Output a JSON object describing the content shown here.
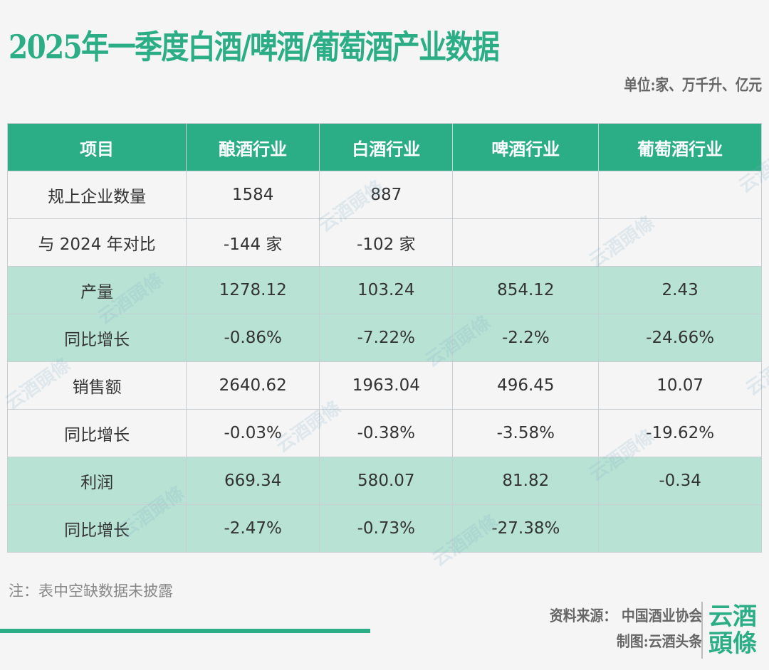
{
  "title": "2025年一季度白酒/啤酒/葡萄酒产业数据",
  "unit": "单位:家、万千升、亿元",
  "colors": {
    "accent": "#2bae85",
    "mint_row": "#b8e2d4"
  },
  "table": {
    "headers": [
      "项目",
      "酿酒行业",
      "白酒行业",
      "啤酒行业",
      "葡萄酒行业"
    ],
    "rows": [
      {
        "style": "plain",
        "cells": [
          "规上企业数量",
          "1584",
          "887",
          "",
          ""
        ]
      },
      {
        "style": "plain",
        "cells": [
          "与 2024 年对比",
          "-144 家",
          "-102 家",
          "",
          ""
        ]
      },
      {
        "style": "mint",
        "cells": [
          "产量",
          "1278.12",
          "103.24",
          "854.12",
          "2.43"
        ]
      },
      {
        "style": "mint",
        "cells": [
          "同比增长",
          "-0.86%",
          "-7.22%",
          "-2.2%",
          "-24.66%"
        ]
      },
      {
        "style": "plain",
        "cells": [
          "销售额",
          "2640.62",
          "1963.04",
          "496.45",
          "10.07"
        ]
      },
      {
        "style": "plain",
        "cells": [
          "同比增长",
          "-0.03%",
          "-0.38%",
          "-3.58%",
          "-19.62%"
        ]
      },
      {
        "style": "mint",
        "cells": [
          "利润",
          "669.34",
          "580.07",
          "81.82",
          "-0.34"
        ]
      },
      {
        "style": "mint",
        "cells": [
          "同比增长",
          "-2.47%",
          "-0.73%",
          "-27.38%",
          ""
        ]
      }
    ]
  },
  "watermark": "云酒頭條",
  "note": "注：表中空缺数据未披露",
  "source": "资料来源：  中国酒业协会",
  "credit": "制图:云酒头条",
  "logo": [
    "云酒",
    "頭條"
  ]
}
